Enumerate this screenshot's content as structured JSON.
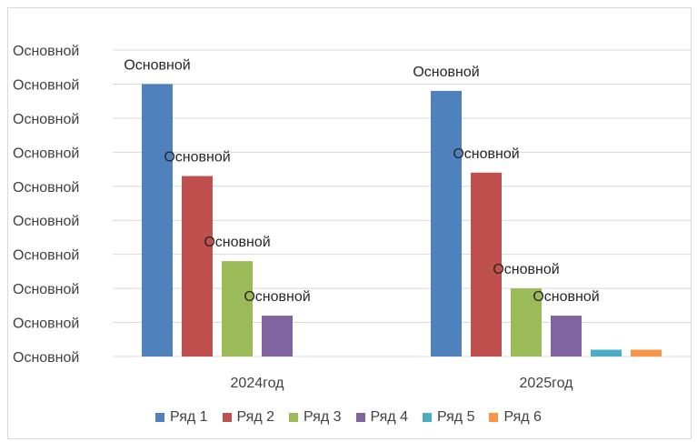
{
  "chart_data": {
    "type": "bar",
    "categories": [
      "2024год",
      "2025год"
    ],
    "y_tick_labels": [
      "Основной",
      "Основной",
      "Основной",
      "Основной",
      "Основной",
      "Основной",
      "Основной",
      "Основной",
      "Основной",
      "Основной"
    ],
    "ylim": [
      0,
      9
    ],
    "grid": true,
    "legend_position": "bottom",
    "series": [
      {
        "name": "Ряд 1",
        "color": "#4F81BD",
        "values": [
          8.0,
          7.8
        ],
        "labels": [
          "Основной",
          "Основной"
        ]
      },
      {
        "name": "Ряд 2",
        "color": "#C0504D",
        "values": [
          5.3,
          5.4
        ],
        "labels": [
          "Основной",
          "Основной"
        ]
      },
      {
        "name": "Ряд 3",
        "color": "#9BBB59",
        "values": [
          2.8,
          2.0
        ],
        "labels": [
          "Основной",
          "Основной"
        ]
      },
      {
        "name": "Ряд 4",
        "color": "#8064A2",
        "values": [
          1.2,
          1.2
        ],
        "labels": [
          "Основной",
          "Основной"
        ]
      },
      {
        "name": "Ряд 5",
        "color": "#4BACC6",
        "values": [
          0,
          0.2
        ],
        "labels": [
          "",
          ""
        ]
      },
      {
        "name": "Ряд 6",
        "color": "#F79646",
        "values": [
          0,
          0.2
        ],
        "labels": [
          "",
          ""
        ]
      }
    ]
  }
}
